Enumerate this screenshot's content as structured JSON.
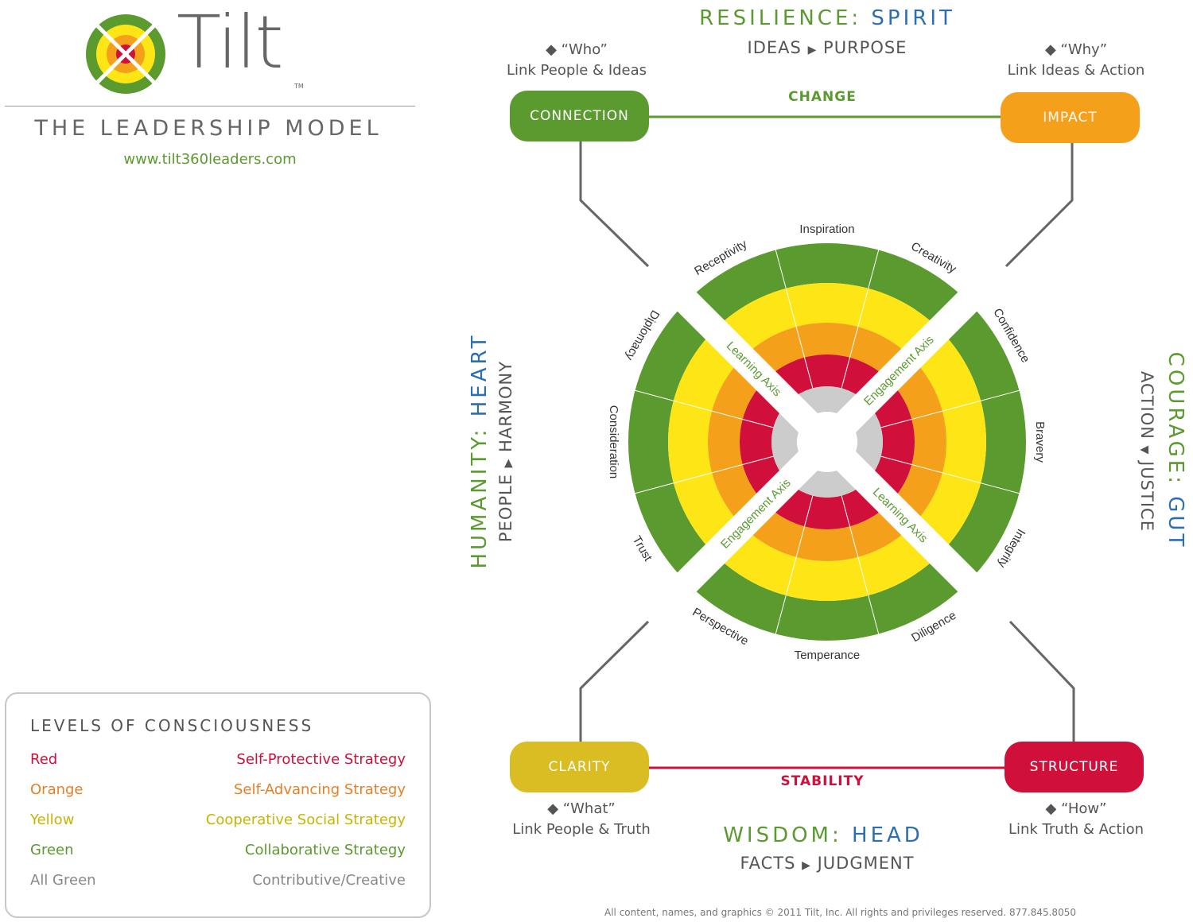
{
  "brand": {
    "name": "Tilt",
    "tm": "TM",
    "model_title": "THE LEADERSHIP MODEL",
    "website": "www.tilt360leaders.com"
  },
  "legend": {
    "title": "LEVELS OF CONSCIOUSNESS",
    "rows": [
      {
        "level": "Red",
        "strategy": "Self-Protective Strategy",
        "color": "#d0103a"
      },
      {
        "level": "Orange",
        "strategy": "Self-Advancing Strategy",
        "color": "#e87f25"
      },
      {
        "level": "Yellow",
        "strategy": "Cooperative Social Strategy",
        "color": "#c9b400"
      },
      {
        "level": "Green",
        "strategy": "Collaborative Strategy",
        "color": "#5b9a2f"
      },
      {
        "level": "All Green",
        "strategy": "Contributive/Creative",
        "color": "#888888"
      }
    ]
  },
  "heads": {
    "top": {
      "a": "RESILIENCE:",
      "b": "SPIRIT",
      "sub_a": "IDEAS",
      "sub_b": "PURPOSE"
    },
    "bottom": {
      "a": "WISDOM:",
      "b": "HEAD",
      "sub_a": "FACTS",
      "sub_b": "JUDGMENT"
    },
    "left": {
      "a": "HUMANITY:",
      "b": "HEART",
      "sub_a": "PEOPLE",
      "sub_b": "HARMONY"
    },
    "right": {
      "a": "COURAGE:",
      "b": "GUT",
      "sub_a": "ACTION",
      "sub_b": "JUSTICE"
    }
  },
  "corners": {
    "connection": {
      "label": "CONNECTION",
      "q": "◆ “Who”",
      "desc": "Link People & Ideas",
      "color": "#5b9a2f"
    },
    "impact": {
      "label": "IMPACT",
      "q": "◆ “Why”",
      "desc": "Link Ideas & Action",
      "color": "#f5a01a"
    },
    "clarity": {
      "label": "CLARITY",
      "q": "◆ “What”",
      "desc": "Link People & Truth",
      "color": "#d9bd22"
    },
    "structure": {
      "label": "STRUCTURE",
      "q": "◆ “How”",
      "desc": "Link Truth & Action",
      "color": "#d0103a"
    }
  },
  "links": {
    "top": "CHANGE",
    "bottom": "STABILITY"
  },
  "wheel": {
    "colors": {
      "green": "#5b9a2f",
      "yellow": "#fde516",
      "orange": "#f5a01a",
      "red": "#d0103a",
      "gray": "#cccccc"
    },
    "traits_top": [
      "Receptivity",
      "Inspiration",
      "Creativity"
    ],
    "traits_right": [
      "Confidence",
      "Bravery",
      "Integrity"
    ],
    "traits_bottom": [
      "Diligence",
      "Temperance",
      "Perspective"
    ],
    "traits_left": [
      "Trust",
      "Consideration",
      "Diplomacy"
    ],
    "axes": {
      "learning": "Learning Axis",
      "engagement": "Engagement Axis"
    }
  },
  "footer": "All content, names, and graphics © 2011 Tilt, Inc.  All rights and privileges reserved. 877.845.8050"
}
